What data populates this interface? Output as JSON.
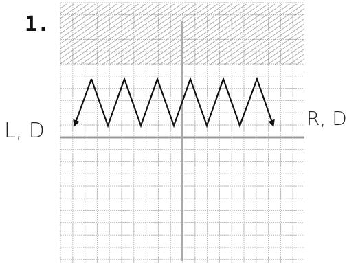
{
  "problem": {
    "number": "1.",
    "left_label": "L, D",
    "right_label": "R, D"
  }
}
